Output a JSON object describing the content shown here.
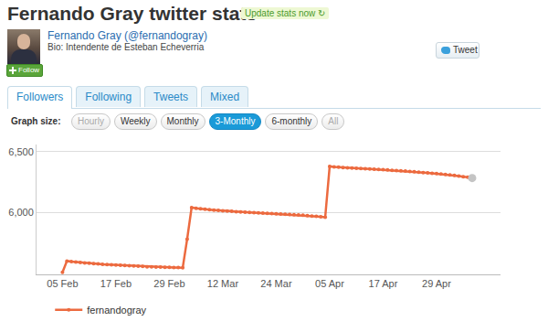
{
  "header": {
    "title": "Fernando Gray twitter stats",
    "update": "Update stats now ↻",
    "name": "Fernando Gray",
    "handle": "(@fernandogray)",
    "bio": "Bio: Intendente de Esteban Echeverria",
    "follow": "Follow",
    "tweet": "Tweet"
  },
  "tabs": {
    "items": [
      "Followers",
      "Following",
      "Tweets",
      "Mixed"
    ],
    "active": "Followers"
  },
  "graph_size": {
    "label": "Graph size:",
    "options": [
      "Hourly",
      "Weekly",
      "Monthly",
      "3-Monthly",
      "6-monthly",
      "All"
    ],
    "active": "3-Monthly",
    "disabled": [
      "Hourly",
      "All"
    ]
  },
  "chart_data": {
    "type": "line",
    "categories": [
      "05 Feb",
      null,
      null,
      null,
      null,
      null,
      null,
      null,
      null,
      null,
      null,
      null,
      "17 Feb",
      null,
      null,
      null,
      null,
      null,
      null,
      null,
      null,
      null,
      null,
      null,
      "29 Feb",
      null,
      null,
      null,
      null,
      null,
      null,
      null,
      null,
      null,
      null,
      null,
      "12 Mar",
      null,
      null,
      null,
      null,
      null,
      null,
      null,
      null,
      null,
      null,
      null,
      "24 Mar",
      null,
      null,
      null,
      null,
      null,
      null,
      null,
      null,
      null,
      null,
      null,
      "05 Apr",
      null,
      null,
      null,
      null,
      null,
      null,
      null,
      null,
      null,
      null,
      null,
      "17 Apr",
      null,
      null,
      null,
      null,
      null,
      null,
      null,
      null,
      null,
      null,
      null,
      "29 Apr",
      null,
      null,
      null,
      null,
      null,
      null,
      null,
      null
    ],
    "series": [
      {
        "name": "fernandogray",
        "color": "#ec6a3f",
        "values": [
          5507,
          5600,
          5595,
          5591,
          5588,
          5585,
          5582,
          5579,
          5576,
          5573,
          5571,
          5569,
          5567,
          5565,
          5563,
          5561,
          5559,
          5557,
          5555,
          5553,
          5552,
          5551,
          5550,
          5549,
          5548,
          5547,
          5546,
          5545,
          5781,
          6041,
          6035,
          6030,
          6026,
          6023,
          6020,
          6017,
          6014,
          6011,
          6009,
          6007,
          6005,
          6003,
          6001,
          5999,
          5997,
          5995,
          5993,
          5991,
          5989,
          5987,
          5985,
          5983,
          5981,
          5979,
          5977,
          5974,
          5971,
          5968,
          5965,
          5961,
          6380,
          6376,
          6373,
          6370,
          6368,
          6366,
          6364,
          6362,
          6360,
          6358,
          6356,
          6354,
          6352,
          6350,
          6348,
          6346,
          6344,
          6341,
          6338,
          6335,
          6332,
          6329,
          6326,
          6323,
          6320,
          6317,
          6313,
          6309,
          6305,
          6300,
          6295,
          6290,
          6284
        ]
      }
    ],
    "ylim": [
      5490,
      6560
    ],
    "yticks": [
      {
        "value": 6000,
        "label": "6,000"
      },
      {
        "value": 6500,
        "label": "6,500"
      }
    ],
    "grid": true,
    "legend": "bottom left",
    "marker": "circle"
  }
}
